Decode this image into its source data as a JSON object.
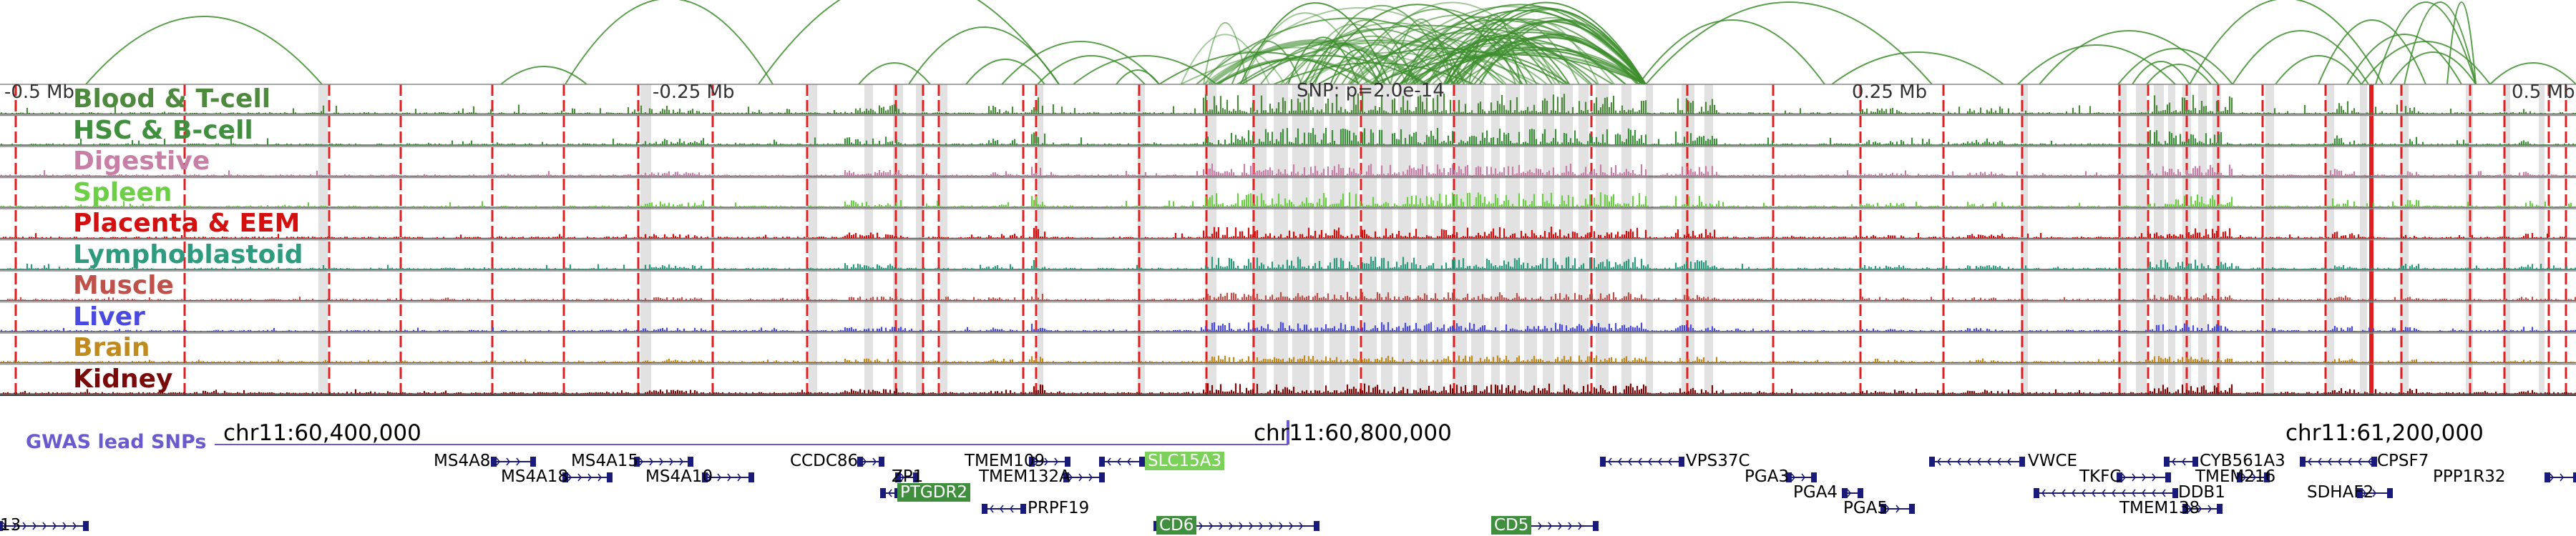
{
  "snp_label": "SNP: p=2.0e-14",
  "axis_ticks": [
    "-0.5 Mb",
    "-0.25 Mb",
    "0.25 Mb",
    "0.5 Mb"
  ],
  "coordinates": [
    "chr11:60,400,000",
    "chr11:60,800,000",
    "chr11:61,200,000"
  ],
  "gwas_label": "GWAS lead SNPs",
  "colors": {
    "arc": "#3e8e2e",
    "gene": "#1a1a7a",
    "gene_highlight_light": "#7cd15a",
    "gene_highlight_dark": "#3f8f3f",
    "gwas": "#6a5acd",
    "red_marks": "#e02020"
  },
  "tracks": [
    {
      "label": "Blood & T-cell",
      "color": "#4e8a3e"
    },
    {
      "label": "HSC & B-cell",
      "color": "#3f8f3f"
    },
    {
      "label": "Digestive",
      "color": "#c77fa5"
    },
    {
      "label": "Spleen",
      "color": "#6ccf45"
    },
    {
      "label": "Placenta & EEM",
      "color": "#d40f0f"
    },
    {
      "label": "Lymphoblastoid",
      "color": "#2e9a7e"
    },
    {
      "label": "Muscle",
      "color": "#c0504a"
    },
    {
      "label": "Liver",
      "color": "#4a4ae0"
    },
    {
      "label": "Brain",
      "color": "#c08a1e"
    },
    {
      "label": "Kidney",
      "color": "#7a0a0a"
    }
  ],
  "genes": [
    {
      "name": "MS4A8",
      "strand": "+"
    },
    {
      "name": "MS4A15",
      "strand": "+"
    },
    {
      "name": "MS4A18",
      "strand": "+"
    },
    {
      "name": "MS4A10",
      "strand": "+"
    },
    {
      "name": "CCDC86",
      "strand": "+"
    },
    {
      "name": "TMEM109",
      "strand": "+"
    },
    {
      "name": "SLC15A3",
      "strand": "-"
    },
    {
      "name": "ZP1",
      "strand": "+"
    },
    {
      "name": "TMEM132A",
      "strand": "+"
    },
    {
      "name": "PTGDR2",
      "strand": "-"
    },
    {
      "name": "PRPF19",
      "strand": "-"
    },
    {
      "name": "CD6",
      "strand": "+"
    },
    {
      "name": "CD5",
      "strand": "+"
    },
    {
      "name": "VPS37C",
      "strand": "-"
    },
    {
      "name": "PGA3",
      "strand": "+"
    },
    {
      "name": "PGA4",
      "strand": "+"
    },
    {
      "name": "PGA5",
      "strand": "+"
    },
    {
      "name": "VWCE",
      "strand": "-"
    },
    {
      "name": "TKFC",
      "strand": "+"
    },
    {
      "name": "DDB1",
      "strand": "-"
    },
    {
      "name": "TMEM138",
      "strand": "+"
    },
    {
      "name": "CYB561A3",
      "strand": "-"
    },
    {
      "name": "TMEM216",
      "strand": "+"
    },
    {
      "name": "CPSF7",
      "strand": "-"
    },
    {
      "name": "SDHAF2",
      "strand": "+"
    },
    {
      "name": "PPP1R32",
      "strand": "+"
    },
    {
      "name": "13",
      "strand": "+"
    }
  ]
}
